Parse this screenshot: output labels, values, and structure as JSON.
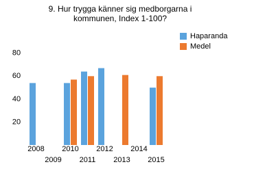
{
  "chart_data": {
    "type": "bar",
    "title": "9. Hur trygga känner sig medborgarna i kommunen, Index 1-100?",
    "categories": [
      "2008",
      "2009",
      "2010",
      "2011",
      "2012",
      "2013",
      "2014",
      "2015"
    ],
    "series": [
      {
        "name": "Haparanda",
        "color": "#5ba3dd",
        "values": [
          54,
          null,
          54,
          64,
          67,
          null,
          null,
          50
        ]
      },
      {
        "name": "Medel",
        "color": "#ec7a2f",
        "values": [
          null,
          null,
          57,
          60,
          null,
          61,
          null,
          60
        ]
      }
    ],
    "ylim": [
      0,
      90
    ],
    "yticks": [
      20,
      40,
      60,
      80
    ],
    "grid": false,
    "legend": "right"
  }
}
